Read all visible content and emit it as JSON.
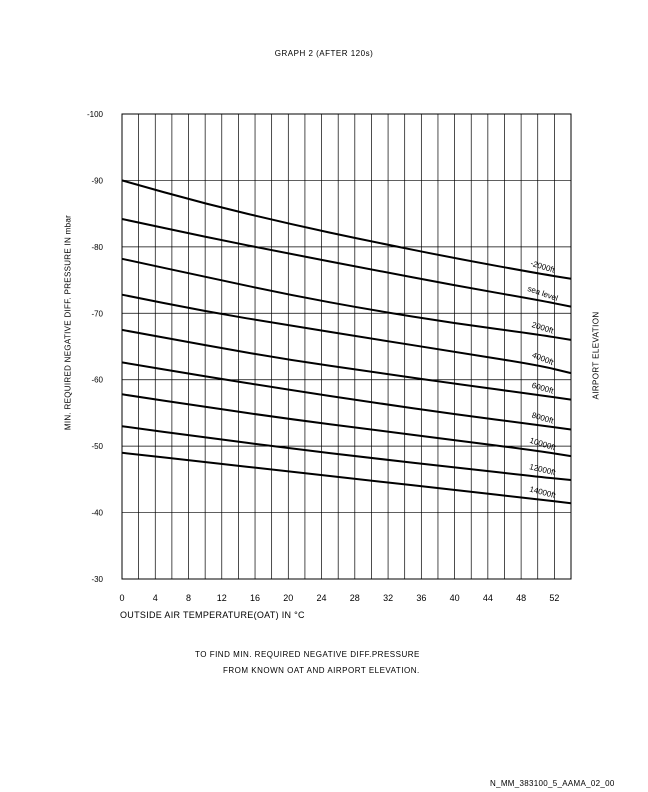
{
  "title": "GRAPH 2 (AFTER 120s)",
  "y_axis_label": "MIN. REQUIRED NEGATIVE DIFF. PRESSURE IN mbar",
  "side_label": "AIRPORT ELEVATION",
  "x_axis_label": "OUTSIDE AIR TEMPERATURE(OAT) IN",
  "x_axis_unit": "°C",
  "note_line1": "TO FIND MIN. REQUIRED NEGATIVE DIFF.PRESSURE",
  "note_line2": "FROM KNOWN OAT AND AIRPORT ELEVATION.",
  "doc_ref": "N_MM_383100_5_AAMA_02_00",
  "chart_data": {
    "type": "line",
    "title": "GRAPH 2 (AFTER 120s)",
    "xlabel": "OUTSIDE AIR TEMPERATURE(OAT) IN °C",
    "ylabel": "MIN. REQUIRED NEGATIVE DIFF. PRESSURE IN mbar",
    "xlim": [
      0,
      54
    ],
    "ylim": [
      -30,
      -100
    ],
    "x_ticks": [
      "0",
      "4",
      "8",
      "12",
      "16",
      "20",
      "24",
      "28",
      "32",
      "36",
      "40",
      "44",
      "48",
      "52"
    ],
    "y_ticks": [
      "-100",
      "-90",
      "-80",
      "-70",
      "-60",
      "-50",
      "-40",
      "-30"
    ],
    "grid": true,
    "series": [
      {
        "name": "-2000ft",
        "x": [
          0,
          10,
          20,
          30,
          40,
          50,
          54
        ],
        "y": [
          -90,
          -86.5,
          -83.5,
          -80.8,
          -78.3,
          -76,
          -75.2
        ]
      },
      {
        "name": "sea level",
        "x": [
          0,
          10,
          20,
          30,
          40,
          50,
          54
        ],
        "y": [
          -84.2,
          -81.5,
          -79,
          -76.6,
          -74.2,
          -72,
          -71
        ]
      },
      {
        "name": "2000ft",
        "x": [
          0,
          10,
          20,
          30,
          40,
          50,
          54
        ],
        "y": [
          -78.2,
          -75.5,
          -72.8,
          -70.5,
          -68.5,
          -66.8,
          -66
        ]
      },
      {
        "name": "4000ft",
        "x": [
          0,
          10,
          20,
          30,
          40,
          50,
          54
        ],
        "y": [
          -72.8,
          -70.3,
          -68.2,
          -66.2,
          -64.2,
          -62.2,
          -61
        ]
      },
      {
        "name": "6000ft",
        "x": [
          0,
          10,
          20,
          30,
          40,
          50,
          54
        ],
        "y": [
          -67.5,
          -65.2,
          -63,
          -61.2,
          -59.4,
          -57.7,
          -57
        ]
      },
      {
        "name": "8000ft",
        "x": [
          0,
          10,
          20,
          30,
          40,
          50,
          54
        ],
        "y": [
          -62.6,
          -60.5,
          -58.5,
          -56.6,
          -54.8,
          -53.2,
          -52.5
        ]
      },
      {
        "name": "10000ft",
        "x": [
          0,
          10,
          20,
          30,
          40,
          50,
          54
        ],
        "y": [
          -57.8,
          -55.9,
          -54.1,
          -52.5,
          -50.9,
          -49.3,
          -48.5
        ]
      },
      {
        "name": "12000ft",
        "x": [
          0,
          10,
          20,
          30,
          40,
          50,
          54
        ],
        "y": [
          -53,
          -51.3,
          -49.7,
          -48.2,
          -46.8,
          -45.4,
          -44.9
        ]
      },
      {
        "name": "14000ft",
        "x": [
          0,
          10,
          20,
          30,
          40,
          50,
          54
        ],
        "y": [
          -49,
          -47.6,
          -46.2,
          -44.8,
          -43.4,
          -42,
          -41.4
        ]
      }
    ]
  }
}
